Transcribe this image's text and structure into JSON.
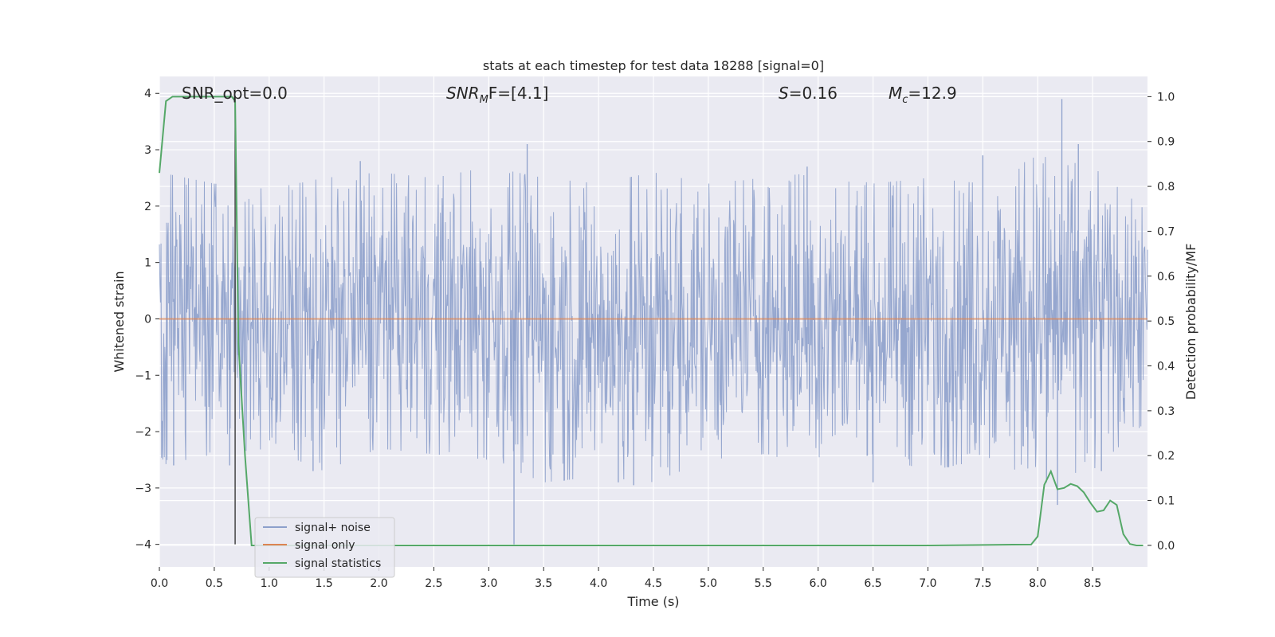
{
  "chart_data": {
    "type": "line",
    "title": "stats at each timestep for test data 18288 [signal=0]",
    "xlabel": "Time (s)",
    "ylabel_left": "Whitened strain",
    "ylabel_right": "Detection probability/MF",
    "xlim": [
      0.0,
      9.0
    ],
    "ylim_left": [
      -4.4,
      4.3
    ],
    "ylim_right": [
      -0.048,
      1.045
    ],
    "x_ticks": [
      0.0,
      0.5,
      1.0,
      1.5,
      2.0,
      2.5,
      3.0,
      3.5,
      4.0,
      4.5,
      5.0,
      5.5,
      6.0,
      6.5,
      7.0,
      7.5,
      8.0,
      8.5
    ],
    "x_tick_labels": [
      "0.0",
      "0.5",
      "1.0",
      "1.5",
      "2.0",
      "2.5",
      "3.0",
      "3.5",
      "4.0",
      "4.5",
      "5.0",
      "5.5",
      "6.0",
      "6.5",
      "7.0",
      "7.5",
      "8.0",
      "8.5"
    ],
    "y_left_ticks": [
      4,
      3,
      2,
      1,
      0,
      -1,
      -2,
      -3,
      -4
    ],
    "y_left_tick_labels": [
      "4",
      "3",
      "2",
      "1",
      "0",
      "−1",
      "−2",
      "−3",
      "−4"
    ],
    "y_right_ticks": [
      1.0,
      0.9,
      0.8,
      0.7,
      0.6,
      0.5,
      0.4,
      0.3,
      0.2,
      0.1,
      0.0
    ],
    "y_right_tick_labels": [
      "1.0",
      "0.9",
      "0.8",
      "0.7",
      "0.6",
      "0.5",
      "0.4",
      "0.3",
      "0.2",
      "0.1",
      "0.0"
    ],
    "grid": true,
    "annotations": {
      "snr_opt": "SNR_opt=0.0",
      "snr_mf_main": "SNR",
      "snr_mf_sub": "M",
      "snr_mf_rest": "F=[4.1]",
      "s_main": "S",
      "s_rest": "=0.16",
      "mc_main": "M",
      "mc_sub": "c",
      "mc_rest": "=12.9"
    },
    "vertical_marker_x": 0.69,
    "legend": {
      "placement": "lower-left",
      "entries": [
        "signal+ noise",
        "signal only",
        "signal statistics"
      ]
    },
    "colors": {
      "background": "#eaeaf2",
      "grid": "#ffffff",
      "noise": "#8da0cb",
      "signal_only": "#dd8452",
      "statistics": "#55a868",
      "marker": "#444444"
    },
    "series": [
      {
        "name": "signal+ noise",
        "axis": "left",
        "description_level": "noise band approx ±2 with spikes to +3.9 and −4.0",
        "envelope_x": [
          0.0,
          0.5,
          1.0,
          1.5,
          2.0,
          2.5,
          3.0,
          3.5,
          4.0,
          4.5,
          5.0,
          5.5,
          6.0,
          6.5,
          7.0,
          7.5,
          8.0,
          8.5,
          9.0
        ],
        "envelope_high": [
          2.6,
          2.4,
          2.3,
          2.5,
          2.6,
          2.5,
          2.7,
          2.5,
          2.4,
          2.6,
          2.4,
          2.5,
          2.6,
          2.4,
          2.5,
          2.4,
          2.9,
          2.7,
          1.9
        ],
        "envelope_low": [
          -2.6,
          -2.4,
          -2.3,
          -2.7,
          -2.3,
          -2.4,
          -2.5,
          -2.9,
          -2.8,
          -2.9,
          -2.5,
          -2.4,
          -2.6,
          -2.4,
          -2.7,
          -2.5,
          -2.8,
          -2.7,
          -1.8
        ],
        "spikes": [
          [
            0.13,
            -2.6
          ],
          [
            0.64,
            -2.6
          ],
          [
            1.4,
            -2.7
          ],
          [
            1.83,
            2.8
          ],
          [
            3.23,
            -4.0
          ],
          [
            3.35,
            3.1
          ],
          [
            4.18,
            -2.9
          ],
          [
            4.32,
            -2.95
          ],
          [
            5.9,
            2.7
          ],
          [
            6.5,
            -2.9
          ],
          [
            7.5,
            2.9
          ],
          [
            8.08,
            -2.9
          ],
          [
            8.18,
            -3.3
          ],
          [
            8.22,
            3.9
          ],
          [
            8.37,
            3.1
          ],
          [
            8.58,
            -2.7
          ]
        ]
      },
      {
        "name": "signal only",
        "axis": "left",
        "x": [
          0.0,
          9.0
        ],
        "y": [
          0.0,
          0.0
        ]
      },
      {
        "name": "signal statistics",
        "axis": "right",
        "x": [
          0.0,
          0.06,
          0.12,
          0.18,
          0.24,
          0.3,
          0.36,
          0.42,
          0.48,
          0.54,
          0.6,
          0.66,
          0.69,
          0.72,
          0.78,
          0.84,
          1.0,
          2.0,
          3.0,
          4.0,
          5.0,
          6.0,
          7.0,
          7.5,
          7.94,
          8.0,
          8.06,
          8.12,
          8.18,
          8.24,
          8.3,
          8.36,
          8.42,
          8.48,
          8.54,
          8.6,
          8.66,
          8.72,
          8.78,
          8.84,
          8.9,
          8.96
        ],
        "y": [
          0.83,
          0.99,
          1.0,
          1.0,
          1.0,
          1.0,
          1.0,
          1.0,
          1.0,
          1.0,
          1.0,
          1.0,
          0.99,
          0.45,
          0.2,
          0.0,
          0.0,
          0.0,
          0.0,
          0.0,
          0.0,
          0.0,
          0.0,
          0.001,
          0.002,
          0.02,
          0.135,
          0.165,
          0.125,
          0.128,
          0.137,
          0.132,
          0.118,
          0.095,
          0.075,
          0.078,
          0.1,
          0.09,
          0.025,
          0.003,
          0.0,
          0.0
        ]
      }
    ]
  }
}
